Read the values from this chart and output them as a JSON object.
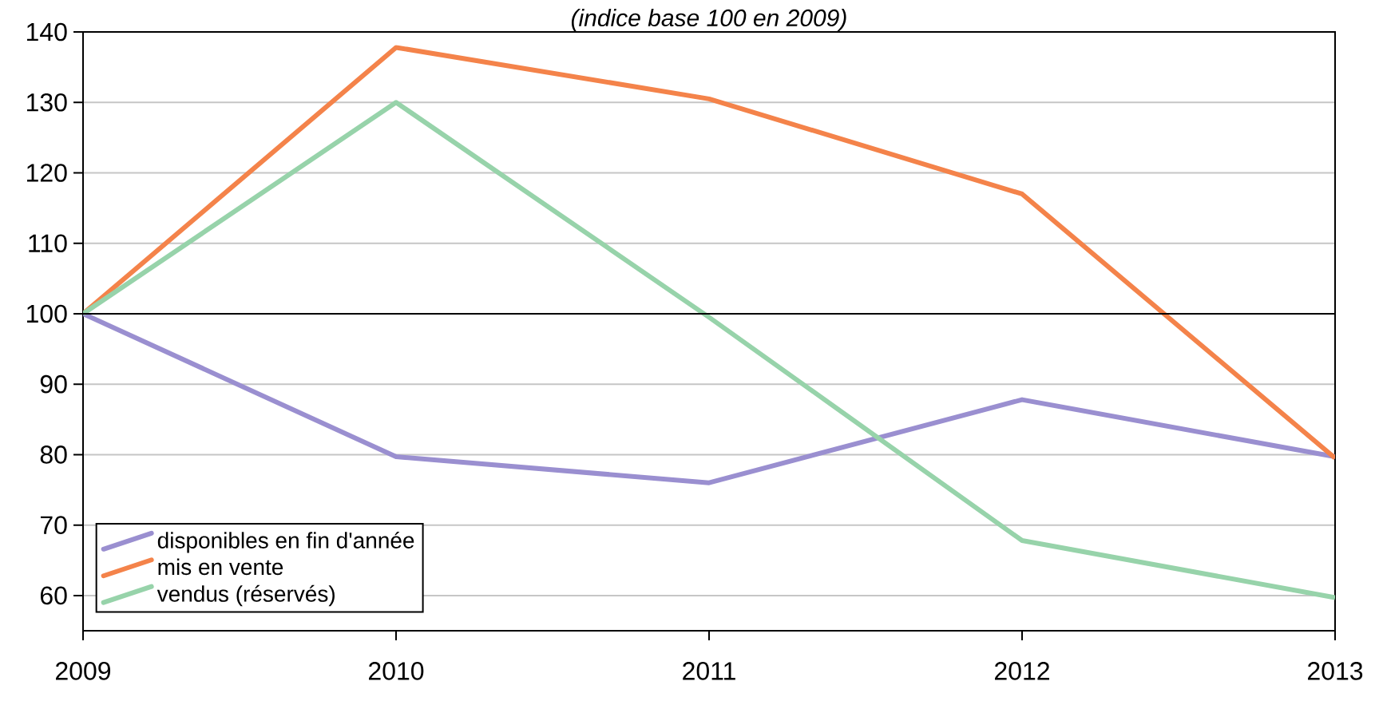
{
  "chart_data": {
    "type": "line",
    "title": "(indice base 100 en 2009)",
    "x": [
      2009,
      2010,
      2011,
      2012,
      2013
    ],
    "series": [
      {
        "name": "disponibles en fin d'année",
        "color": "#9a8fd0",
        "values": [
          100,
          79.7,
          76,
          87.8,
          79.7
        ]
      },
      {
        "name": "mis en vente",
        "color": "#f4834a",
        "values": [
          100,
          137.8,
          130.5,
          117,
          79.5
        ]
      },
      {
        "name": "vendus (réservés)",
        "color": "#97d3aa",
        "values": [
          100,
          130,
          99.5,
          67.8,
          59.7
        ]
      }
    ],
    "xlim": [
      2009,
      2013
    ],
    "xticks": [
      2009,
      2010,
      2011,
      2012,
      2013
    ],
    "ylim": [
      55,
      140
    ],
    "yticks": [
      60,
      70,
      80,
      90,
      100,
      110,
      120,
      130,
      140
    ],
    "ref_lines": [
      {
        "axis": "y",
        "value": 100,
        "color": "#000000"
      }
    ],
    "grid": "y",
    "legend": "bottom left",
    "marker": "none",
    "line_style": "solid"
  }
}
